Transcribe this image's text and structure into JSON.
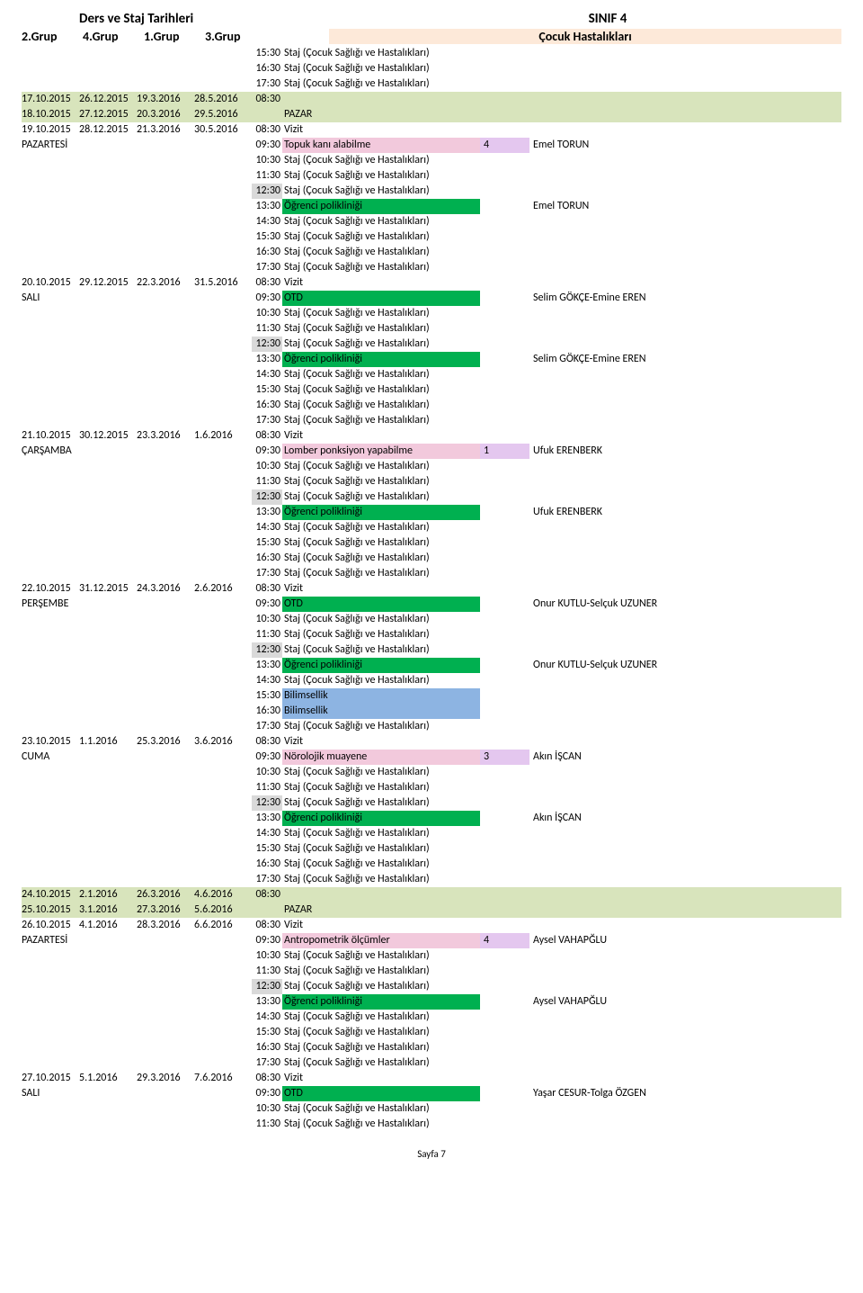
{
  "header": {
    "left_title": "Ders ve Staj Tarihleri",
    "right_title": "SINIF 4",
    "groups": [
      "2.Grup",
      "4.Grup",
      "1.Grup",
      "3.Grup"
    ],
    "section": "Çocuk Hastalıkları"
  },
  "footer": "Sayfa 7",
  "texts": {
    "staj": "Staj (Çocuk Sağlığı ve Hastalıkları)",
    "vizit": "Vizit",
    "ogrenci": "Öğrenci polikliniği",
    "pazar": "PAZAR",
    "otd": "OTD",
    "bilim": "Bilimsellik"
  },
  "rows": [
    {
      "type": "slot",
      "d1": "",
      "d2": "",
      "d3": "",
      "d4": "",
      "day": "",
      "time": "15:30",
      "act_key": "staj"
    },
    {
      "type": "slot",
      "time": "16:30",
      "act_key": "staj"
    },
    {
      "type": "slot",
      "time": "17:30",
      "act_key": "staj"
    },
    {
      "type": "wknd",
      "d1": "17.10.2015",
      "d2": "26.12.2015",
      "d3": "19.3.2016",
      "d4": "28.5.2016",
      "time": "08:30",
      "act": ""
    },
    {
      "type": "wknd",
      "d1": "18.10.2015",
      "d2": "27.12.2015",
      "d3": "20.3.2016",
      "d4": "29.5.2016",
      "time": "",
      "act_key": "pazar"
    },
    {
      "type": "slot",
      "d1": "19.10.2015",
      "d2": "28.12.2015",
      "d3": "21.3.2016",
      "d4": "30.5.2016",
      "day": "",
      "time": "08:30",
      "act_key": "vizit"
    },
    {
      "type": "slot",
      "d1": "PAZARTESİ",
      "day": "",
      "time": "09:30",
      "act": "Topuk kanı alabilme",
      "act_bg": "bg-pink",
      "num": "4",
      "num_bg": "bg-violet",
      "person": "Emel TORUN"
    },
    {
      "type": "slot",
      "time": "10:30",
      "act_key": "staj"
    },
    {
      "type": "slot",
      "time": "11:30",
      "act_key": "staj"
    },
    {
      "type": "slot",
      "time": "12:30",
      "act_key": "staj",
      "time_bg": "bg-gray"
    },
    {
      "type": "slot",
      "time": "13:30",
      "act_key": "ogrenci",
      "act_bg": "bg-green",
      "person": "Emel TORUN"
    },
    {
      "type": "slot",
      "time": "14:30",
      "act_key": "staj"
    },
    {
      "type": "slot",
      "time": "15:30",
      "act_key": "staj"
    },
    {
      "type": "slot",
      "time": "16:30",
      "act_key": "staj"
    },
    {
      "type": "slot",
      "time": "17:30",
      "act_key": "staj"
    },
    {
      "type": "slot",
      "d1": "20.10.2015",
      "d2": "29.12.2015",
      "d3": "22.3.2016",
      "d4": "31.5.2016",
      "time": "08:30",
      "act_key": "vizit"
    },
    {
      "type": "slot",
      "d1": "SALI",
      "time": "09:30",
      "act_key": "otd",
      "act_bg": "bg-green",
      "person": "Selim GÖKÇE-Emine EREN"
    },
    {
      "type": "slot",
      "time": "10:30",
      "act_key": "staj"
    },
    {
      "type": "slot",
      "time": "11:30",
      "act_key": "staj"
    },
    {
      "type": "slot",
      "time": "12:30",
      "act_key": "staj",
      "time_bg": "bg-gray"
    },
    {
      "type": "slot",
      "time": "13:30",
      "act_key": "ogrenci",
      "act_bg": "bg-green",
      "person": "Selim GÖKÇE-Emine EREN"
    },
    {
      "type": "slot",
      "time": "14:30",
      "act_key": "staj"
    },
    {
      "type": "slot",
      "time": "15:30",
      "act_key": "staj"
    },
    {
      "type": "slot",
      "time": "16:30",
      "act_key": "staj"
    },
    {
      "type": "slot",
      "time": "17:30",
      "act_key": "staj"
    },
    {
      "type": "slot",
      "d1": "21.10.2015",
      "d2": "30.12.2015",
      "d3": "23.3.2016",
      "d4": "1.6.2016",
      "time": "08:30",
      "act_key": "vizit"
    },
    {
      "type": "slot",
      "d1": "ÇARŞAMBA",
      "time": "09:30",
      "act": "Lomber ponksiyon yapabilme",
      "act_bg": "bg-pink",
      "num": "1",
      "num_bg": "bg-violet",
      "person": "Ufuk ERENBERK"
    },
    {
      "type": "slot",
      "time": "10:30",
      "act_key": "staj"
    },
    {
      "type": "slot",
      "time": "11:30",
      "act_key": "staj"
    },
    {
      "type": "slot",
      "time": "12:30",
      "act_key": "staj",
      "time_bg": "bg-gray"
    },
    {
      "type": "slot",
      "time": "13:30",
      "act_key": "ogrenci",
      "act_bg": "bg-green",
      "person": "Ufuk ERENBERK"
    },
    {
      "type": "slot",
      "time": "14:30",
      "act_key": "staj"
    },
    {
      "type": "slot",
      "time": "15:30",
      "act_key": "staj"
    },
    {
      "type": "slot",
      "time": "16:30",
      "act_key": "staj"
    },
    {
      "type": "slot",
      "time": "17:30",
      "act_key": "staj"
    },
    {
      "type": "slot",
      "d1": "22.10.2015",
      "d2": "31.12.2015",
      "d3": "24.3.2016",
      "d4": "2.6.2016",
      "time": "08:30",
      "act_key": "vizit"
    },
    {
      "type": "slot",
      "d1": "PERŞEMBE",
      "time": "09:30",
      "act_key": "otd",
      "act_bg": "bg-green",
      "person": "Onur KUTLU-Selçuk UZUNER"
    },
    {
      "type": "slot",
      "time": "10:30",
      "act_key": "staj"
    },
    {
      "type": "slot",
      "time": "11:30",
      "act_key": "staj"
    },
    {
      "type": "slot",
      "time": "12:30",
      "act_key": "staj",
      "time_bg": "bg-gray"
    },
    {
      "type": "slot",
      "time": "13:30",
      "act_key": "ogrenci",
      "act_bg": "bg-green",
      "person": "Onur KUTLU-Selçuk UZUNER"
    },
    {
      "type": "slot",
      "time": "14:30",
      "act_key": "staj"
    },
    {
      "type": "slot",
      "time": "15:30",
      "act_key": "bilim",
      "act_bg": "bg-blue"
    },
    {
      "type": "slot",
      "time": "16:30",
      "act_key": "bilim",
      "act_bg": "bg-blue"
    },
    {
      "type": "slot",
      "time": "17:30",
      "act_key": "staj"
    },
    {
      "type": "slot",
      "d1": "23.10.2015",
      "d2": "1.1.2016",
      "d3": "25.3.2016",
      "d4": "3.6.2016",
      "time": "08:30",
      "act_key": "vizit"
    },
    {
      "type": "slot",
      "d1": "CUMA",
      "time": "09:30",
      "act": "Nörolojik muayene",
      "act_bg": "bg-pink",
      "num": "3",
      "num_bg": "bg-violet",
      "person": "Akın İŞCAN"
    },
    {
      "type": "slot",
      "time": "10:30",
      "act_key": "staj"
    },
    {
      "type": "slot",
      "time": "11:30",
      "act_key": "staj"
    },
    {
      "type": "slot",
      "time": "12:30",
      "act_key": "staj",
      "time_bg": "bg-gray"
    },
    {
      "type": "slot",
      "time": "13:30",
      "act_key": "ogrenci",
      "act_bg": "bg-green",
      "person": "Akın İŞCAN"
    },
    {
      "type": "slot",
      "time": "14:30",
      "act_key": "staj"
    },
    {
      "type": "slot",
      "time": "15:30",
      "act_key": "staj"
    },
    {
      "type": "slot",
      "time": "16:30",
      "act_key": "staj"
    },
    {
      "type": "slot",
      "time": "17:30",
      "act_key": "staj"
    },
    {
      "type": "wknd",
      "d1": "24.10.2015",
      "d2": "2.1.2016",
      "d3": "26.3.2016",
      "d4": "4.6.2016",
      "time": "08:30",
      "act": ""
    },
    {
      "type": "wknd",
      "d1": "25.10.2015",
      "d2": "3.1.2016",
      "d3": "27.3.2016",
      "d4": "5.6.2016",
      "time": "",
      "act_key": "pazar"
    },
    {
      "type": "slot",
      "d1": "26.10.2015",
      "d2": "4.1.2016",
      "d3": "28.3.2016",
      "d4": "6.6.2016",
      "time": "08:30",
      "act_key": "vizit"
    },
    {
      "type": "slot",
      "d1": "PAZARTESİ",
      "time": "09:30",
      "act": "Antropometrik ölçümler",
      "act_bg": "bg-pink",
      "num": "4",
      "num_bg": "bg-violet",
      "person": "Aysel VAHAPĞLU"
    },
    {
      "type": "slot",
      "time": "10:30",
      "act_key": "staj"
    },
    {
      "type": "slot",
      "time": "11:30",
      "act_key": "staj"
    },
    {
      "type": "slot",
      "time": "12:30",
      "act_key": "staj",
      "time_bg": "bg-gray"
    },
    {
      "type": "slot",
      "time": "13:30",
      "act_key": "ogrenci",
      "act_bg": "bg-green",
      "person": "Aysel VAHAPĞLU"
    },
    {
      "type": "slot",
      "time": "14:30",
      "act_key": "staj"
    },
    {
      "type": "slot",
      "time": "15:30",
      "act_key": "staj"
    },
    {
      "type": "slot",
      "time": "16:30",
      "act_key": "staj"
    },
    {
      "type": "slot",
      "time": "17:30",
      "act_key": "staj"
    },
    {
      "type": "slot",
      "d1": "27.10.2015",
      "d2": "5.1.2016",
      "d3": "29.3.2016",
      "d4": "7.6.2016",
      "time": "08:30",
      "act_key": "vizit"
    },
    {
      "type": "slot",
      "d1": "SALI",
      "time": "09:30",
      "act_key": "otd",
      "act_bg": "bg-green",
      "person": "Yaşar CESUR-Tolga ÖZGEN"
    },
    {
      "type": "slot",
      "time": "10:30",
      "act_key": "staj"
    },
    {
      "type": "slot",
      "time": "11:30",
      "act_key": "staj"
    }
  ]
}
